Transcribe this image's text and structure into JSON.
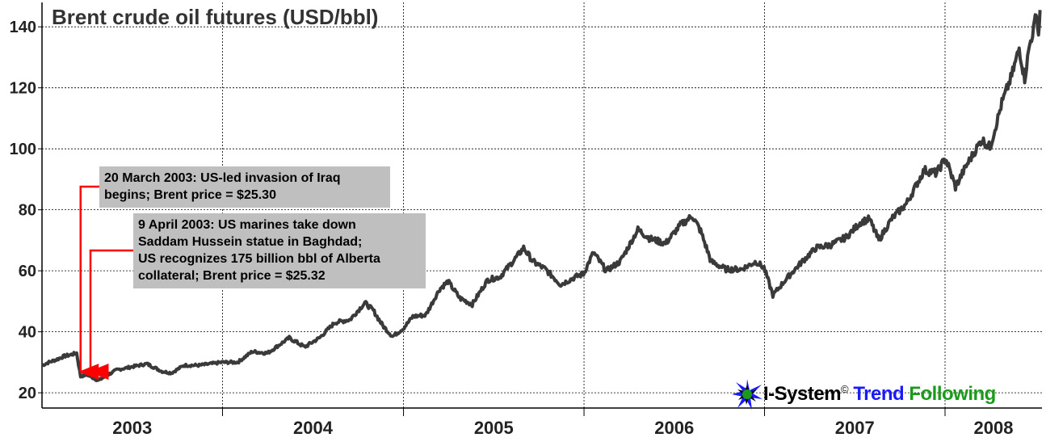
{
  "chart_data": {
    "type": "line",
    "title": "Brent crude oil futures (USD/bbl)",
    "xlabel": "",
    "ylabel": "",
    "ylim": [
      15,
      148
    ],
    "xlim": [
      "2003-01-01",
      "2008-07-15"
    ],
    "yticks": [
      20,
      40,
      60,
      80,
      100,
      120,
      140
    ],
    "x_tick_labels": [
      "2003",
      "2004",
      "2005",
      "2006",
      "2007",
      "2008"
    ],
    "grid": true,
    "legend": "none",
    "colors": {
      "line": "#3a3a3a",
      "arrow": "#ff0000",
      "annotation_bg": "#bfbfbf",
      "grid": "#000000"
    },
    "series": [
      {
        "points": [
          [
            "2003-01-01",
            29.0
          ],
          [
            "2003-01-15",
            30.0
          ],
          [
            "2003-02-01",
            31.0
          ],
          [
            "2003-02-15",
            32.0
          ],
          [
            "2003-03-01",
            32.5
          ],
          [
            "2003-03-12",
            33.0
          ],
          [
            "2003-03-20",
            25.3
          ],
          [
            "2003-04-01",
            26.0
          ],
          [
            "2003-04-09",
            25.32
          ],
          [
            "2003-04-25",
            24.0
          ],
          [
            "2003-05-10",
            25.5
          ],
          [
            "2003-06-01",
            27.5
          ],
          [
            "2003-07-01",
            28.5
          ],
          [
            "2003-08-01",
            29.5
          ],
          [
            "2003-09-01",
            27.0
          ],
          [
            "2003-09-20",
            26.5
          ],
          [
            "2003-10-15",
            29.0
          ],
          [
            "2003-11-15",
            29.0
          ],
          [
            "2003-12-31",
            30.0
          ],
          [
            "2004-02-01",
            30.0
          ],
          [
            "2004-03-01",
            33.5
          ],
          [
            "2004-04-01",
            33.0
          ],
          [
            "2004-05-15",
            38.0
          ],
          [
            "2004-06-15",
            35.0
          ],
          [
            "2004-07-15",
            38.0
          ],
          [
            "2004-08-15",
            43.0
          ],
          [
            "2004-09-15",
            44.0
          ],
          [
            "2004-10-15",
            49.5
          ],
          [
            "2004-11-01",
            47.0
          ],
          [
            "2004-11-20",
            42.0
          ],
          [
            "2004-12-10",
            38.5
          ],
          [
            "2004-12-31",
            41.0
          ],
          [
            "2005-01-20",
            45.0
          ],
          [
            "2005-02-15",
            45.5
          ],
          [
            "2005-03-15",
            54.0
          ],
          [
            "2005-04-01",
            56.5
          ],
          [
            "2005-04-25",
            51.0
          ],
          [
            "2005-05-20",
            49.0
          ],
          [
            "2005-06-20",
            57.0
          ],
          [
            "2005-07-15",
            58.0
          ],
          [
            "2005-08-15",
            64.0
          ],
          [
            "2005-09-01",
            67.5
          ],
          [
            "2005-09-20",
            63.0
          ],
          [
            "2005-10-15",
            60.5
          ],
          [
            "2005-11-15",
            55.5
          ],
          [
            "2005-12-15",
            58.0
          ],
          [
            "2005-12-31",
            59.0
          ],
          [
            "2006-01-20",
            66.0
          ],
          [
            "2006-02-15",
            60.0
          ],
          [
            "2006-03-15",
            63.0
          ],
          [
            "2006-04-20",
            73.5
          ],
          [
            "2006-05-15",
            70.5
          ],
          [
            "2006-06-15",
            69.0
          ],
          [
            "2006-07-15",
            75.0
          ],
          [
            "2006-08-08",
            78.0
          ],
          [
            "2006-08-25",
            73.0
          ],
          [
            "2006-09-15",
            63.0
          ],
          [
            "2006-10-15",
            60.5
          ],
          [
            "2006-11-15",
            60.5
          ],
          [
            "2006-12-15",
            63.0
          ],
          [
            "2006-12-31",
            61.0
          ],
          [
            "2007-01-18",
            52.0
          ],
          [
            "2007-02-15",
            57.5
          ],
          [
            "2007-03-15",
            62.5
          ],
          [
            "2007-04-15",
            67.5
          ],
          [
            "2007-05-15",
            68.5
          ],
          [
            "2007-06-15",
            71.0
          ],
          [
            "2007-07-15",
            76.0
          ],
          [
            "2007-08-01",
            77.0
          ],
          [
            "2007-08-20",
            70.0
          ],
          [
            "2007-09-15",
            77.0
          ],
          [
            "2007-10-15",
            82.0
          ],
          [
            "2007-11-20",
            93.0
          ],
          [
            "2007-12-15",
            92.0
          ],
          [
            "2008-01-02",
            97.0
          ],
          [
            "2008-01-22",
            87.5
          ],
          [
            "2008-02-15",
            95.0
          ],
          [
            "2008-03-15",
            103.0
          ],
          [
            "2008-04-01",
            100.5
          ],
          [
            "2008-04-25",
            115.0
          ],
          [
            "2008-05-15",
            124.0
          ],
          [
            "2008-05-30",
            133.0
          ],
          [
            "2008-06-10",
            123.0
          ],
          [
            "2008-06-20",
            134.0
          ],
          [
            "2008-06-30",
            140.5
          ],
          [
            "2008-07-03",
            146.0
          ],
          [
            "2008-07-08",
            137.0
          ],
          [
            "2008-07-11",
            145.5
          ]
        ]
      }
    ],
    "annotations": [
      {
        "lines": [
          "20 March 2003: US-led invasion of Iraq",
          "begins; Brent price = $25.30"
        ],
        "x": "2003-03-20",
        "y": 25.3
      },
      {
        "lines": [
          "9 April 2003: US marines take down",
          "Saddam Hussein statue in Baghdad;",
          "US recognizes 175 billion bbl of Alberta",
          "collateral; Brent price = $25.32"
        ],
        "x": "2003-04-09",
        "y": 25.32
      }
    ]
  },
  "logo": {
    "brand": "I-System",
    "copyright": "©",
    "word1": "Trend",
    "word2": "Following",
    "colors": {
      "brand": "#000000",
      "word1": "#1a1aff",
      "word2": "#1b9a1b"
    }
  }
}
